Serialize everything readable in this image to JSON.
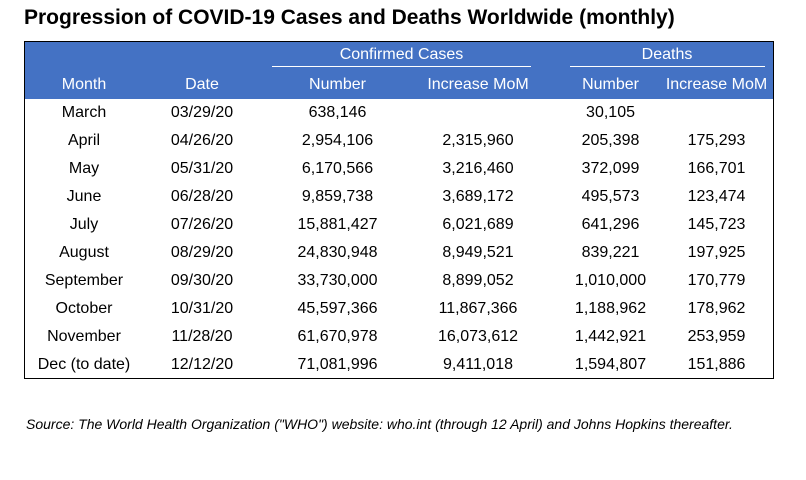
{
  "title": "Progression of COVID-19 Cases and Deaths Worldwide (monthly)",
  "header": {
    "group_confirmed": "Confirmed Cases",
    "group_deaths": "Deaths",
    "col_month": "Month",
    "col_date": "Date",
    "col_cases_number": "Number",
    "col_cases_increase": "Increase MoM",
    "col_deaths_number": "Number",
    "col_deaths_increase": "Increase MoM"
  },
  "header_color": "#4472c4",
  "rows": [
    {
      "month": "March",
      "date": "03/29/20",
      "cases": "638,146",
      "cases_inc": "",
      "deaths": "30,105",
      "deaths_inc": ""
    },
    {
      "month": "April",
      "date": "04/26/20",
      "cases": "2,954,106",
      "cases_inc": "2,315,960",
      "deaths": "205,398",
      "deaths_inc": "175,293"
    },
    {
      "month": "May",
      "date": "05/31/20",
      "cases": "6,170,566",
      "cases_inc": "3,216,460",
      "deaths": "372,099",
      "deaths_inc": "166,701"
    },
    {
      "month": "June",
      "date": "06/28/20",
      "cases": "9,859,738",
      "cases_inc": "3,689,172",
      "deaths": "495,573",
      "deaths_inc": "123,474"
    },
    {
      "month": "July",
      "date": "07/26/20",
      "cases": "15,881,427",
      "cases_inc": "6,021,689",
      "deaths": "641,296",
      "deaths_inc": "145,723"
    },
    {
      "month": "August",
      "date": "08/29/20",
      "cases": "24,830,948",
      "cases_inc": "8,949,521",
      "deaths": "839,221",
      "deaths_inc": "197,925"
    },
    {
      "month": "September",
      "date": "09/30/20",
      "cases": "33,730,000",
      "cases_inc": "8,899,052",
      "deaths": "1,010,000",
      "deaths_inc": "170,779"
    },
    {
      "month": "October",
      "date": "10/31/20",
      "cases": "45,597,366",
      "cases_inc": "11,867,366",
      "deaths": "1,188,962",
      "deaths_inc": "178,962"
    },
    {
      "month": "November",
      "date": "11/28/20",
      "cases": "61,670,978",
      "cases_inc": "16,073,612",
      "deaths": "1,442,921",
      "deaths_inc": "253,959"
    },
    {
      "month": "Dec (to date)",
      "date": "12/12/20",
      "cases": "71,081,996",
      "cases_inc": "9,411,018",
      "deaths": "1,594,807",
      "deaths_inc": "151,886"
    }
  ],
  "source_note": "Source: The World Health Organization (\"WHO\") website: who.int (through 12 April) and Johns Hopkins thereafter."
}
